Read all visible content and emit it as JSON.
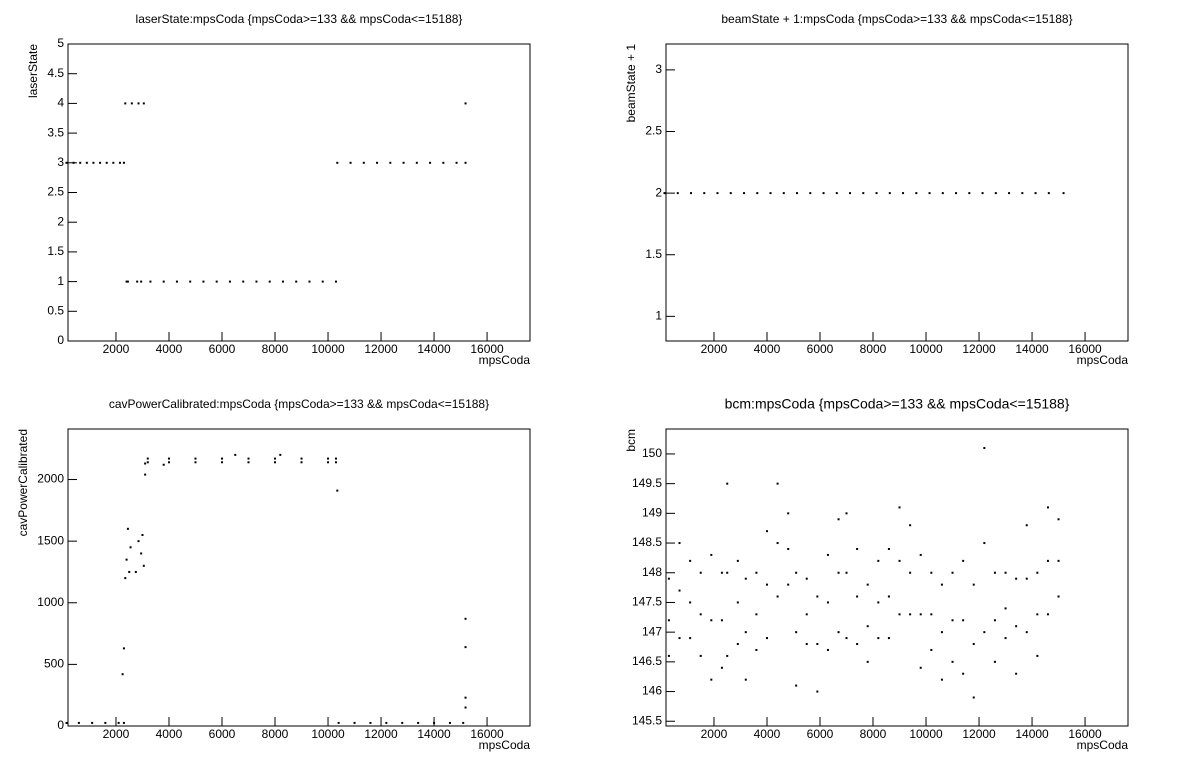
{
  "chart_data": [
    {
      "type": "scatter",
      "title": "laserState:mpsCoda {mpsCoda>=133 && mpsCoda<=15188}",
      "x_label": "mpsCoda",
      "y_label": "laserState",
      "color": "#000000",
      "xlim": [
        190,
        17620
      ],
      "ylim": [
        0,
        5
      ],
      "xticks": [
        2000,
        4000,
        6000,
        8000,
        10000,
        12000,
        14000,
        16000
      ],
      "yticks": [
        0,
        0.5,
        1,
        1.5,
        2,
        2.5,
        3,
        3.5,
        4,
        4.5,
        5
      ],
      "x": [
        133,
        400,
        650,
        900,
        1150,
        1400,
        1650,
        1900,
        2150,
        2300,
        2350,
        2600,
        2850,
        3050,
        2400,
        2450,
        2800,
        2950,
        3300,
        3800,
        4300,
        4800,
        5300,
        5800,
        6300,
        6800,
        7300,
        7800,
        8300,
        8800,
        9300,
        9800,
        10300,
        10350,
        10850,
        11350,
        11850,
        12350,
        12850,
        13350,
        13850,
        14350,
        14850,
        15188,
        15188
      ],
      "values": [
        3,
        3,
        3,
        3,
        3,
        3,
        3,
        3,
        3,
        3,
        4,
        4,
        4,
        4,
        1,
        1,
        1,
        1,
        1,
        1,
        1,
        1,
        1,
        1,
        1,
        1,
        1,
        1,
        1,
        1,
        1,
        1,
        1,
        3,
        3,
        3,
        3,
        3,
        3,
        3,
        3,
        3,
        3,
        3,
        4
      ]
    },
    {
      "type": "scatter",
      "title": "beamState + 1:mpsCoda {mpsCoda>=133 && mpsCoda<=15188}",
      "x_label": "mpsCoda",
      "y_label": "beamState + 1",
      "color": "#000000",
      "xlim": [
        190,
        17620
      ],
      "ylim": [
        0.8,
        3.21
      ],
      "xticks": [
        2000,
        4000,
        6000,
        8000,
        10000,
        12000,
        14000,
        16000
      ],
      "yticks": [
        1,
        1.5,
        2,
        2.5,
        3
      ],
      "x": [
        133,
        633,
        1133,
        1633,
        2133,
        2633,
        3133,
        3633,
        4133,
        4633,
        5133,
        5633,
        6133,
        6633,
        7133,
        7633,
        8133,
        8633,
        9133,
        9633,
        10133,
        10633,
        11133,
        11633,
        12133,
        12633,
        13133,
        13633,
        14133,
        14633,
        15188
      ],
      "values": [
        2,
        2,
        2,
        2,
        2,
        2,
        2,
        2,
        2,
        2,
        2,
        2,
        2,
        2,
        2,
        2,
        2,
        2,
        2,
        2,
        2,
        2,
        2,
        2,
        2,
        2,
        2,
        2,
        2,
        2,
        2
      ]
    },
    {
      "type": "scatter",
      "title": "cavPowerCalibrated:mpsCoda {mpsCoda>=133 && mpsCoda<=15188}",
      "x_label": "mpsCoda",
      "y_label": "cavPowerCalibrated",
      "color": "#000000",
      "xlim": [
        190,
        17620
      ],
      "ylim": [
        0,
        2410
      ],
      "xticks": [
        2000,
        4000,
        6000,
        8000,
        10000,
        12000,
        14000,
        16000
      ],
      "yticks": [
        0,
        500,
        1000,
        1500,
        2000
      ],
      "x": [
        133,
        600,
        1100,
        1600,
        2100,
        2300,
        2250,
        2300,
        2350,
        2400,
        2450,
        2500,
        2550,
        2750,
        2850,
        2950,
        3000,
        3050,
        3100,
        3100,
        3200,
        4000,
        5000,
        6000,
        7000,
        8000,
        9000,
        10000,
        10300,
        3200,
        4000,
        5000,
        6000,
        7000,
        8000,
        9000,
        10000,
        10300,
        6500,
        8200,
        3800,
        10350,
        10400,
        11000,
        11600,
        12200,
        12800,
        13400,
        14000,
        14600,
        15100,
        15188,
        15188,
        15188,
        15188
      ],
      "values": [
        25,
        25,
        25,
        25,
        25,
        25,
        420,
        630,
        1200,
        1350,
        1600,
        1250,
        1450,
        1250,
        1500,
        1400,
        1550,
        1300,
        2040,
        2130,
        2170,
        2170,
        2170,
        2170,
        2170,
        2170,
        2170,
        2170,
        2170,
        2140,
        2140,
        2140,
        2140,
        2140,
        2140,
        2140,
        2140,
        2140,
        2200,
        2200,
        2120,
        1910,
        25,
        25,
        25,
        25,
        25,
        25,
        25,
        25,
        25,
        870,
        640,
        230,
        150
      ]
    },
    {
      "type": "scatter",
      "title": "bcm:mpsCoda {mpsCoda>=133 && mpsCoda<=15188}",
      "x_label": "mpsCoda",
      "y_label": "bcm",
      "color": "#000000",
      "xlim": [
        190,
        17620
      ],
      "ylim": [
        145.42,
        150.42
      ],
      "xticks": [
        2000,
        4000,
        6000,
        8000,
        10000,
        12000,
        14000,
        16000
      ],
      "yticks": [
        145.5,
        146,
        146.5,
        147,
        147.5,
        148,
        148.5,
        149,
        149.5,
        150
      ],
      "x": [
        300,
        300,
        300,
        700,
        700,
        700,
        1100,
        1100,
        1100,
        1500,
        1500,
        1500,
        1900,
        1900,
        1900,
        2300,
        2300,
        2300,
        2500,
        2500,
        2500,
        2900,
        2900,
        2900,
        3200,
        3200,
        3200,
        3600,
        3600,
        3600,
        4000,
        4000,
        4000,
        4400,
        4400,
        4400,
        4800,
        4800,
        4800,
        5100,
        5100,
        5100,
        5500,
        5500,
        5500,
        5900,
        5900,
        5900,
        6300,
        6300,
        6300,
        6700,
        6700,
        6700,
        7000,
        7000,
        7000,
        7400,
        7400,
        7400,
        7800,
        7800,
        7800,
        8200,
        8200,
        8200,
        8600,
        8600,
        8600,
        9000,
        9000,
        9000,
        9400,
        9400,
        9400,
        9800,
        9800,
        9800,
        10200,
        10200,
        10200,
        10600,
        10600,
        10600,
        11000,
        11000,
        11000,
        11400,
        11400,
        11400,
        11800,
        11800,
        11800,
        12200,
        12200,
        12200,
        12600,
        12600,
        12600,
        13000,
        13000,
        13000,
        13400,
        13400,
        13400,
        13800,
        13800,
        13800,
        14200,
        14200,
        14200,
        14600,
        14600,
        14600,
        15000,
        15000,
        15000
      ],
      "values": [
        146.6,
        147.2,
        147.9,
        146.9,
        147.7,
        148.5,
        146.9,
        147.5,
        148.2,
        146.6,
        147.3,
        148.0,
        146.2,
        147.2,
        148.3,
        146.4,
        147.2,
        148.0,
        146.6,
        148.0,
        149.5,
        146.8,
        147.5,
        148.2,
        146.2,
        147.0,
        147.9,
        146.7,
        147.3,
        148.0,
        146.9,
        147.8,
        148.7,
        147.6,
        148.5,
        149.5,
        147.8,
        148.4,
        149.0,
        146.1,
        147.0,
        148.0,
        146.8,
        147.3,
        147.9,
        146.0,
        146.8,
        147.6,
        146.7,
        147.5,
        148.3,
        147.0,
        148.0,
        148.9,
        146.9,
        148.0,
        149.0,
        146.8,
        147.6,
        148.4,
        146.5,
        147.1,
        147.8,
        146.9,
        147.5,
        148.2,
        146.9,
        147.6,
        148.4,
        147.3,
        148.2,
        149.1,
        147.3,
        148.0,
        148.8,
        146.4,
        147.3,
        148.3,
        146.7,
        147.3,
        148.0,
        146.2,
        147.0,
        147.8,
        146.5,
        147.2,
        148.0,
        146.3,
        147.2,
        148.2,
        145.9,
        146.8,
        147.8,
        147.0,
        148.5,
        150.1,
        146.5,
        147.2,
        148.0,
        146.9,
        147.4,
        148.0,
        146.3,
        147.1,
        147.9,
        147.0,
        147.9,
        148.8,
        146.6,
        147.3,
        148.0,
        147.3,
        148.2,
        149.1,
        147.6,
        148.2,
        148.9
      ]
    }
  ]
}
